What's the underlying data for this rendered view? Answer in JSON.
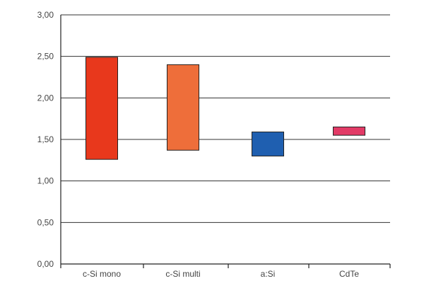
{
  "chart_data": {
    "type": "bar",
    "subtype": "floating-range",
    "title": "",
    "xlabel": "",
    "ylabel": "",
    "categories": [
      "c-Si mono",
      "c-Si multi",
      "a:Si",
      "CdTe"
    ],
    "series": [
      {
        "ranges": [
          [
            1.26,
            2.49
          ],
          [
            1.37,
            2.4
          ],
          [
            1.3,
            1.59
          ],
          [
            1.55,
            1.65
          ]
        ],
        "colors": [
          "#e8381c",
          "#ee6e3a",
          "#1f5fb0",
          "#e23a66"
        ]
      }
    ],
    "ylim": [
      0,
      3
    ],
    "yticks": [
      0,
      0.5,
      1.0,
      1.5,
      2.0,
      2.5,
      3.0
    ],
    "ytick_labels": [
      "0,00",
      "0,50",
      "1,00",
      "1,50",
      "2,00",
      "2,50",
      "3,00"
    ],
    "grid": true
  }
}
